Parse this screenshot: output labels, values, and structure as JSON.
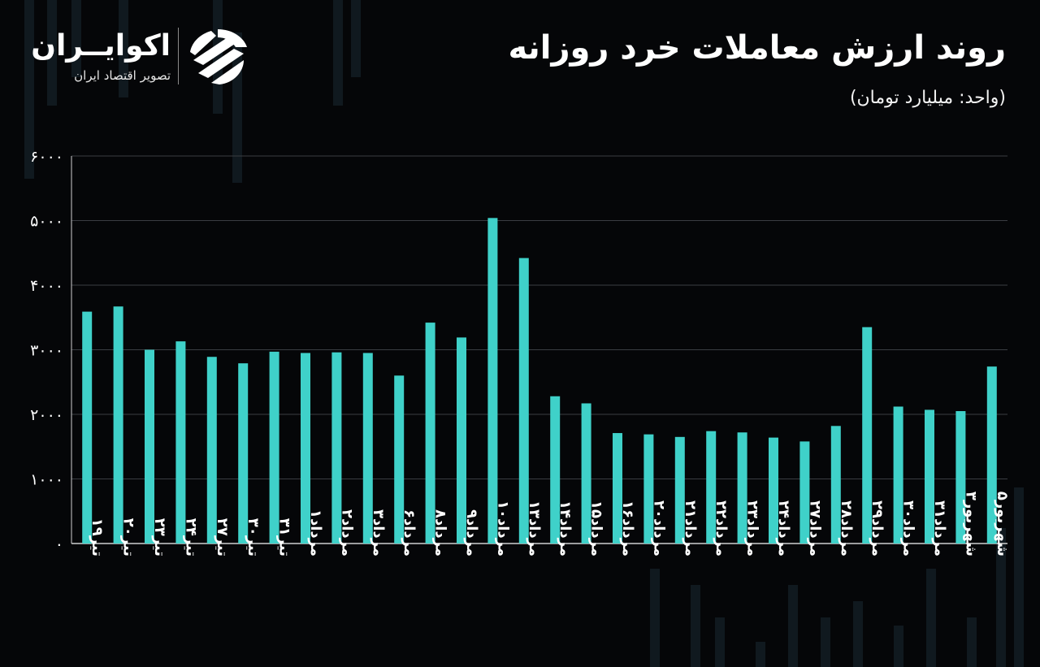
{
  "header": {
    "title": "روند ارزش معاملات خرد روزانه",
    "subtitle": "(واحد: میلیارد تومان)"
  },
  "brand": {
    "name": "اکوایــران",
    "tagline": "تصویر اقتصاد ایران"
  },
  "colors": {
    "background": "#050608",
    "bar": "#3fd1c9",
    "grid": "#3a3d42",
    "axis": "#cfcfcf",
    "text": "#ffffff"
  },
  "chart_data": {
    "type": "bar",
    "title": "روند ارزش معاملات خرد روزانه",
    "ylabel": "(واحد: میلیارد تومان)",
    "ylim": [
      0,
      6000
    ],
    "yticks": [
      "۰",
      "۱۰۰۰",
      "۲۰۰۰",
      "۳۰۰۰",
      "۴۰۰۰",
      "۵۰۰۰",
      "۶۰۰۰"
    ],
    "grid": true,
    "categories": [
      "تیر۱۹",
      "تیر۲۰",
      "تیر۲۳",
      "تیر۲۴",
      "تیر۲۷",
      "تیر۳۰",
      "تیر۳۱",
      "مرداد۱",
      "مرداد۲",
      "مرداد۳",
      "مرداد۶",
      "مرداد۸",
      "مرداد۹",
      "مرداد۱۰",
      "مرداد۱۳",
      "مرداد۱۴",
      "مرداد۱۵",
      "مرداد۱۶",
      "مرداد۲۰",
      "مرداد۲۱",
      "مرداد۲۲",
      "مرداد۲۳",
      "مرداد۲۴",
      "مرداد۲۷",
      "مرداد۲۸",
      "مرداد۲۹",
      "مرداد۳۰",
      "مرداد۳۱",
      "شهریور۳",
      "شهریور۵"
    ],
    "values": [
      3590,
      3670,
      3000,
      3130,
      2890,
      2790,
      2970,
      2950,
      2960,
      2950,
      2600,
      3420,
      3190,
      5040,
      4420,
      2280,
      2170,
      1710,
      1690,
      1650,
      1740,
      1720,
      1640,
      1580,
      1820,
      3350,
      2120,
      2070,
      2050,
      2740
    ]
  }
}
